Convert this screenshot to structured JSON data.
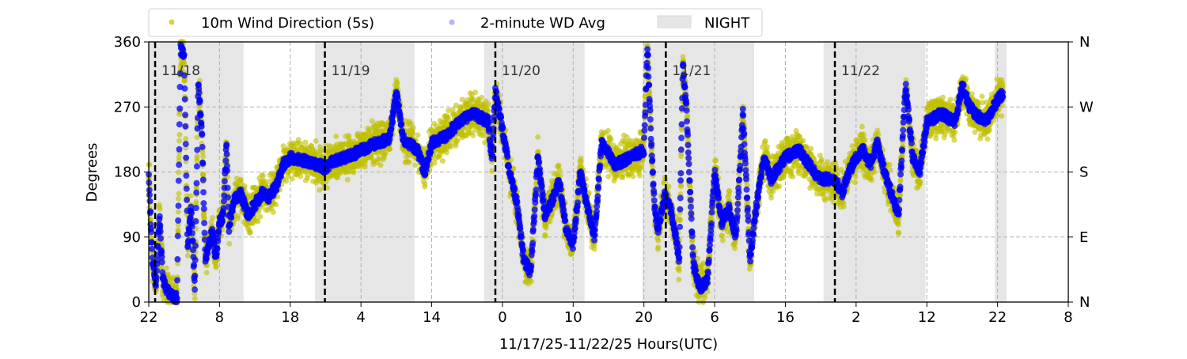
{
  "chart_data": {
    "type": "scatter",
    "xlabel": "11/17/25-11/22/25  Hours(UTC)",
    "ylabel": "Degrees",
    "xlim_hours": [
      0,
      130
    ],
    "ylim": [
      0,
      360
    ],
    "x_ticks": [
      {
        "hour": 0,
        "label": "22"
      },
      {
        "hour": 10,
        "label": "8"
      },
      {
        "hour": 20,
        "label": "18"
      },
      {
        "hour": 30,
        "label": "4"
      },
      {
        "hour": 40,
        "label": "14"
      },
      {
        "hour": 50,
        "label": "0"
      },
      {
        "hour": 60,
        "label": "10"
      },
      {
        "hour": 70,
        "label": "20"
      },
      {
        "hour": 80,
        "label": "6"
      },
      {
        "hour": 90,
        "label": "16"
      },
      {
        "hour": 100,
        "label": "2"
      },
      {
        "hour": 110,
        "label": "12"
      },
      {
        "hour": 120,
        "label": "22"
      },
      {
        "hour": 130,
        "label": "8"
      }
    ],
    "y_ticks": [
      0,
      90,
      180,
      270,
      360
    ],
    "y_right_labels": [
      {
        "value": 0,
        "label": "N"
      },
      {
        "value": 90,
        "label": "E"
      },
      {
        "value": 180,
        "label": "S"
      },
      {
        "value": 270,
        "label": "W"
      },
      {
        "value": 360,
        "label": "N"
      }
    ],
    "grid": true,
    "legend": {
      "placement": "top",
      "entries": [
        {
          "label": "10m Wind Direction (5s)",
          "color": "#bfbf00"
        },
        {
          "label": "2-minute WD Avg",
          "color": "#0000ff"
        },
        {
          "label": "NIGHT",
          "color": "#e6e6e6"
        }
      ]
    },
    "night_bands_hours": [
      [
        0,
        13.4
      ],
      [
        23.5,
        37.6
      ],
      [
        47.4,
        61.6
      ],
      [
        69.8,
        85.6
      ],
      [
        95.4,
        109.8
      ],
      [
        119.6,
        121.3
      ]
    ],
    "day_markers": [
      {
        "hour": 0.9,
        "label": "11/18"
      },
      {
        "hour": 24.9,
        "label": "11/19"
      },
      {
        "hour": 49.0,
        "label": "11/20"
      },
      {
        "hour": 73.1,
        "label": "11/21"
      },
      {
        "hour": 97.0,
        "label": "11/22"
      }
    ],
    "five_second_spread_deg": 30,
    "series_2min_avg": [
      [
        0,
        170
      ],
      [
        0.5,
        60
      ],
      [
        1,
        20
      ],
      [
        1.5,
        120
      ],
      [
        2,
        30
      ],
      [
        3,
        10
      ],
      [
        4,
        5
      ],
      [
        4.5,
        350
      ],
      [
        5,
        340
      ],
      [
        5.5,
        80
      ],
      [
        6,
        130
      ],
      [
        6.5,
        20
      ],
      [
        7,
        300
      ],
      [
        7.5,
        240
      ],
      [
        8,
        60
      ],
      [
        9,
        100
      ],
      [
        9.5,
        60
      ],
      [
        10,
        110
      ],
      [
        10.5,
        120
      ],
      [
        11,
        220
      ],
      [
        11.3,
        100
      ],
      [
        12,
        140
      ],
      [
        13,
        150
      ],
      [
        14,
        120
      ],
      [
        15,
        135
      ],
      [
        16,
        150
      ],
      [
        17,
        145
      ],
      [
        18,
        160
      ],
      [
        19,
        190
      ],
      [
        20,
        200
      ],
      [
        22,
        195
      ],
      [
        24,
        190
      ],
      [
        25,
        185
      ],
      [
        26,
        195
      ],
      [
        28,
        200
      ],
      [
        30,
        210
      ],
      [
        32,
        220
      ],
      [
        34,
        225
      ],
      [
        35,
        290
      ],
      [
        36,
        225
      ],
      [
        38,
        210
      ],
      [
        39,
        180
      ],
      [
        40,
        220
      ],
      [
        42,
        230
      ],
      [
        44,
        250
      ],
      [
        46,
        260
      ],
      [
        48,
        250
      ],
      [
        48.5,
        195
      ],
      [
        49,
        290
      ],
      [
        50,
        240
      ],
      [
        51,
        180
      ],
      [
        52,
        140
      ],
      [
        53,
        60
      ],
      [
        54,
        40
      ],
      [
        55,
        200
      ],
      [
        56,
        120
      ],
      [
        57,
        140
      ],
      [
        58,
        170
      ],
      [
        59,
        100
      ],
      [
        60,
        80
      ],
      [
        61,
        180
      ],
      [
        62,
        130
      ],
      [
        63,
        90
      ],
      [
        64,
        220
      ],
      [
        66,
        190
      ],
      [
        68,
        200
      ],
      [
        70,
        210
      ],
      [
        70.5,
        355
      ],
      [
        71,
        230
      ],
      [
        71.5,
        130
      ],
      [
        72,
        100
      ],
      [
        73,
        150
      ],
      [
        74,
        120
      ],
      [
        75,
        60
      ],
      [
        75.5,
        330
      ],
      [
        76,
        270
      ],
      [
        77,
        50
      ],
      [
        78,
        20
      ],
      [
        79,
        30
      ],
      [
        80,
        180
      ],
      [
        81,
        110
      ],
      [
        82,
        130
      ],
      [
        83,
        90
      ],
      [
        84,
        260
      ],
      [
        85,
        60
      ],
      [
        86,
        140
      ],
      [
        87,
        200
      ],
      [
        88,
        170
      ],
      [
        90,
        200
      ],
      [
        92,
        210
      ],
      [
        94,
        180
      ],
      [
        95,
        170
      ],
      [
        97,
        170
      ],
      [
        98,
        150
      ],
      [
        99,
        180
      ],
      [
        100,
        200
      ],
      [
        101,
        210
      ],
      [
        102,
        190
      ],
      [
        103,
        220
      ],
      [
        104,
        180
      ],
      [
        105,
        150
      ],
      [
        106,
        120
      ],
      [
        107,
        300
      ],
      [
        108,
        200
      ],
      [
        109,
        180
      ],
      [
        110,
        250
      ],
      [
        112,
        260
      ],
      [
        114,
        250
      ],
      [
        115,
        300
      ],
      [
        116,
        270
      ],
      [
        118,
        250
      ],
      [
        119,
        260
      ],
      [
        120,
        280
      ],
      [
        120.8,
        290
      ]
    ]
  }
}
